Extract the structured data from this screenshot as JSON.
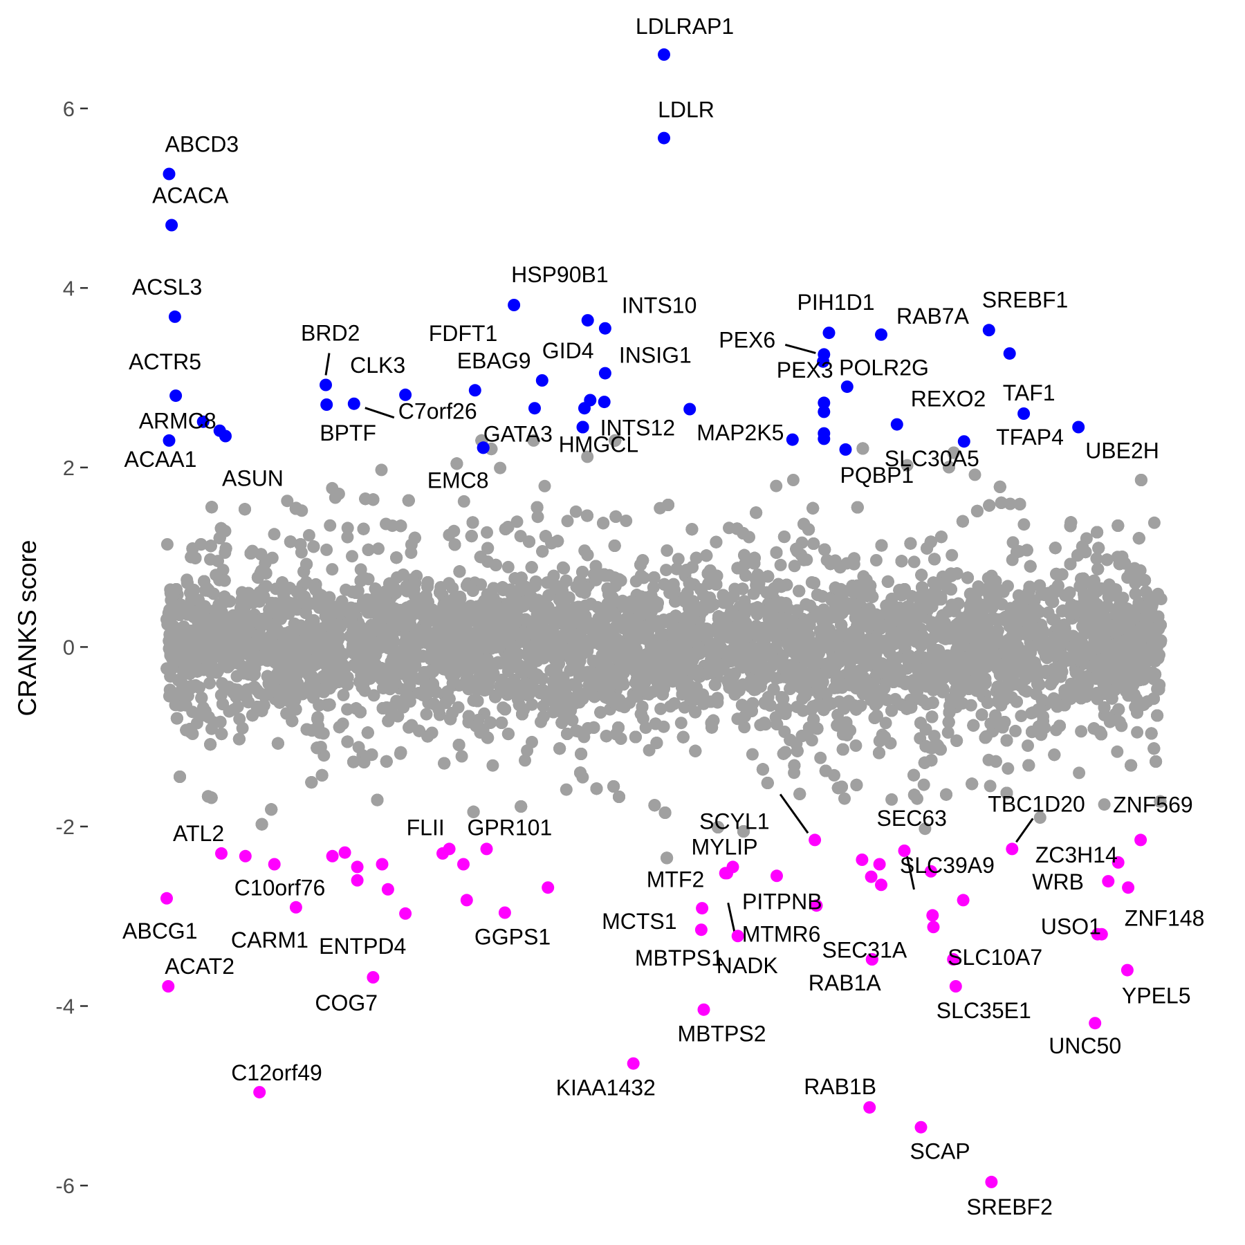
{
  "chart_data": {
    "type": "scatter",
    "title": "",
    "xlabel": "",
    "ylabel": "CRANKS score",
    "ylim": [
      -6.2,
      6.9
    ],
    "xlim": [
      -0.3,
      12.3
    ],
    "y_ticks": [
      {
        "value": 6,
        "label": "6"
      },
      {
        "value": 4,
        "label": "4"
      },
      {
        "value": 2,
        "label": "2"
      },
      {
        "value": 0,
        "label": "0"
      },
      {
        "value": -2,
        "label": "-2"
      },
      {
        "value": -4,
        "label": "-4"
      },
      {
        "value": -6,
        "label": "-6"
      }
    ],
    "grid": false,
    "background_points": {
      "count": 16000,
      "sd": 0.42,
      "color": "#A0A0A0"
    },
    "colors": {
      "positive": "#0000FF",
      "negative": "#FF00FF",
      "background": "#A0A0A0",
      "leader": "#000000"
    },
    "positive_hits": [
      {
        "label": "LDLRAP1",
        "x": 6.0,
        "y": 6.6
      },
      {
        "label": "LDLR",
        "x": 6.0,
        "y": 5.67
      },
      {
        "label": "ABCD3",
        "x": 0.03,
        "y": 5.27
      },
      {
        "label": "ACACA",
        "x": 0.06,
        "y": 4.7
      },
      {
        "label": "ACSL3",
        "x": 0.1,
        "y": 3.68
      },
      {
        "label": "HSP90B1",
        "x": 4.19,
        "y": 3.81
      },
      {
        "label": "FDFT1",
        "x": 5.08,
        "y": 3.64
      },
      {
        "label": "INTS10",
        "x": 5.29,
        "y": 3.55
      },
      {
        "label": "PIH1D1",
        "x": 7.99,
        "y": 3.5
      },
      {
        "label": "RAB7A",
        "x": 8.62,
        "y": 3.48
      },
      {
        "label": "SREBF1",
        "x": 9.92,
        "y": 3.53
      },
      {
        "label": "TAF1",
        "x": 10.17,
        "y": 3.27
      },
      {
        "label": "PEX6",
        "x": 7.93,
        "y": 3.26
      },
      {
        "label": "POLR2G",
        "x": 7.92,
        "y": 3.18
      },
      {
        "label": "INSIG1",
        "x": 5.29,
        "y": 3.05
      },
      {
        "label": "GID4",
        "x": 4.53,
        "y": 2.97
      },
      {
        "label": "BRD2",
        "x": 1.92,
        "y": 2.92
      },
      {
        "label": "EBAG9",
        "x": 3.72,
        "y": 2.86
      },
      {
        "label": "PEX3",
        "x": 8.21,
        "y": 2.9
      },
      {
        "label": "ACTR5",
        "x": 0.11,
        "y": 2.8
      },
      {
        "label": "CLK3",
        "x": 2.88,
        "y": 2.81
      },
      {
        "label": "",
        "x": 5.11,
        "y": 2.75
      },
      {
        "label": "",
        "x": 5.28,
        "y": 2.73
      },
      {
        "label": "BPTF",
        "x": 1.93,
        "y": 2.7
      },
      {
        "label": "C7orf26",
        "x": 2.26,
        "y": 2.71
      },
      {
        "label": "",
        "x": 7.93,
        "y": 2.72
      },
      {
        "label": "",
        "x": 5.04,
        "y": 2.66
      },
      {
        "label": "",
        "x": 4.44,
        "y": 2.66
      },
      {
        "label": "MAP2K5",
        "x": 6.31,
        "y": 2.65
      },
      {
        "label": "",
        "x": 7.93,
        "y": 2.62
      },
      {
        "label": "TFAP4",
        "x": 10.34,
        "y": 2.6
      },
      {
        "label": "ARMC8",
        "x": 0.44,
        "y": 2.51
      },
      {
        "label": "REXO2",
        "x": 8.81,
        "y": 2.48
      },
      {
        "label": "UBE2H",
        "x": 11.0,
        "y": 2.45
      },
      {
        "label": "INTS12",
        "x": 5.02,
        "y": 2.45
      },
      {
        "label": "",
        "x": 0.64,
        "y": 2.41
      },
      {
        "label": "ASUN",
        "x": 0.71,
        "y": 2.35
      },
      {
        "label": "",
        "x": 7.93,
        "y": 2.38
      },
      {
        "label": "ACAA1",
        "x": 0.03,
        "y": 2.3
      },
      {
        "label": "",
        "x": 7.55,
        "y": 2.31
      },
      {
        "label": "",
        "x": 7.93,
        "y": 2.32
      },
      {
        "label": "SLC30A5",
        "x": 9.62,
        "y": 2.29
      },
      {
        "label": "GATA3",
        "x": 3.82,
        "y": 2.22
      },
      {
        "label": "PQBP1",
        "x": 8.19,
        "y": 2.2
      },
      {
        "label": "EMC8",
        "x": 3.82,
        "y": 2.22
      },
      {
        "label": "HMGCL",
        "x": 5.02,
        "y": 2.45
      }
    ],
    "negative_hits": [
      {
        "label": "ZNF569",
        "x": 11.75,
        "y": -2.15
      },
      {
        "label": "ATL2",
        "x": 0.66,
        "y": -2.3
      },
      {
        "label": "TBC1D20",
        "x": 10.2,
        "y": -2.25
      },
      {
        "label": "FLII",
        "x": 3.41,
        "y": -2.25
      },
      {
        "label": "GPR101",
        "x": 3.86,
        "y": -2.25
      },
      {
        "label": "SCYL1",
        "x": 7.82,
        "y": -2.15
      },
      {
        "label": "SEC63",
        "x": 8.9,
        "y": -2.27
      },
      {
        "label": "",
        "x": 0.95,
        "y": -2.33
      },
      {
        "label": "",
        "x": 2.0,
        "y": -2.33
      },
      {
        "label": "",
        "x": 2.6,
        "y": -2.42
      },
      {
        "label": "",
        "x": 3.33,
        "y": -2.3
      },
      {
        "label": "",
        "x": 2.15,
        "y": -2.29
      },
      {
        "label": "ZC3H14",
        "x": 11.48,
        "y": -2.4
      },
      {
        "label": "C10orf76",
        "x": 1.3,
        "y": -2.42
      },
      {
        "label": "MYLIP",
        "x": 6.83,
        "y": -2.45
      },
      {
        "label": "",
        "x": 6.76,
        "y": -2.52
      },
      {
        "label": "",
        "x": 2.3,
        "y": -2.45
      },
      {
        "label": "",
        "x": 3.58,
        "y": -2.42
      },
      {
        "label": "",
        "x": 8.39,
        "y": -2.37
      },
      {
        "label": "",
        "x": 8.6,
        "y": -2.42
      },
      {
        "label": "PITPNB",
        "x": 7.36,
        "y": -2.55
      },
      {
        "label": "SLC39A9",
        "x": 9.22,
        "y": -2.5
      },
      {
        "label": "",
        "x": 8.5,
        "y": -2.56
      },
      {
        "label": "WRB",
        "x": 11.36,
        "y": -2.61
      },
      {
        "label": "",
        "x": 8.62,
        "y": -2.65
      },
      {
        "label": "",
        "x": 2.3,
        "y": -2.6
      },
      {
        "label": "MTF2",
        "x": 6.74,
        "y": -2.52
      },
      {
        "label": "",
        "x": 11.6,
        "y": -2.68
      },
      {
        "label": "",
        "x": 2.67,
        "y": -2.7
      },
      {
        "label": "",
        "x": 4.6,
        "y": -2.68
      },
      {
        "label": "ABCG1",
        "x": 0.0,
        "y": -2.8
      },
      {
        "label": "",
        "x": 9.61,
        "y": -2.82
      },
      {
        "label": "",
        "x": 3.62,
        "y": -2.82
      },
      {
        "label": "CARM1",
        "x": 1.56,
        "y": -2.9
      },
      {
        "label": "MCTS1",
        "x": 6.46,
        "y": -2.91
      },
      {
        "label": "",
        "x": 7.84,
        "y": -2.88
      },
      {
        "label": "GGPS1",
        "x": 4.08,
        "y": -2.96
      },
      {
        "label": "",
        "x": 9.24,
        "y": -2.99
      },
      {
        "label": "MBTPS1",
        "x": 6.45,
        "y": -3.15
      },
      {
        "label": "SEC31A",
        "x": 9.25,
        "y": -3.12
      },
      {
        "label": "MTMR6",
        "x": 6.89,
        "y": -3.22
      },
      {
        "label": "ENTPD4",
        "x": 2.88,
        "y": -2.97
      },
      {
        "label": "ZNF148",
        "x": 11.28,
        "y": -3.2
      },
      {
        "label": "SLC10A7",
        "x": 9.49,
        "y": -3.48
      },
      {
        "label": "NADK",
        "x": 8.51,
        "y": -3.48
      },
      {
        "label": "RAB1A",
        "x": 8.51,
        "y": -3.48
      },
      {
        "label": "USO1",
        "x": 11.23,
        "y": -3.2
      },
      {
        "label": "YPEL5",
        "x": 11.59,
        "y": -3.6
      },
      {
        "label": "COG7",
        "x": 2.49,
        "y": -3.68
      },
      {
        "label": "ACAT2",
        "x": 0.02,
        "y": -3.78
      },
      {
        "label": "SLC35E1",
        "x": 9.52,
        "y": -3.78
      },
      {
        "label": "MBTPS2",
        "x": 6.48,
        "y": -4.04
      },
      {
        "label": "UNC50",
        "x": 11.2,
        "y": -4.19
      },
      {
        "label": "KIAA1432",
        "x": 5.63,
        "y": -4.64
      },
      {
        "label": "C12orf49",
        "x": 1.12,
        "y": -4.96
      },
      {
        "label": "RAB1B",
        "x": 8.48,
        "y": -5.13
      },
      {
        "label": "SCAP",
        "x": 9.1,
        "y": -5.35
      },
      {
        "label": "SREBF2",
        "x": 9.95,
        "y": -5.96
      }
    ]
  }
}
